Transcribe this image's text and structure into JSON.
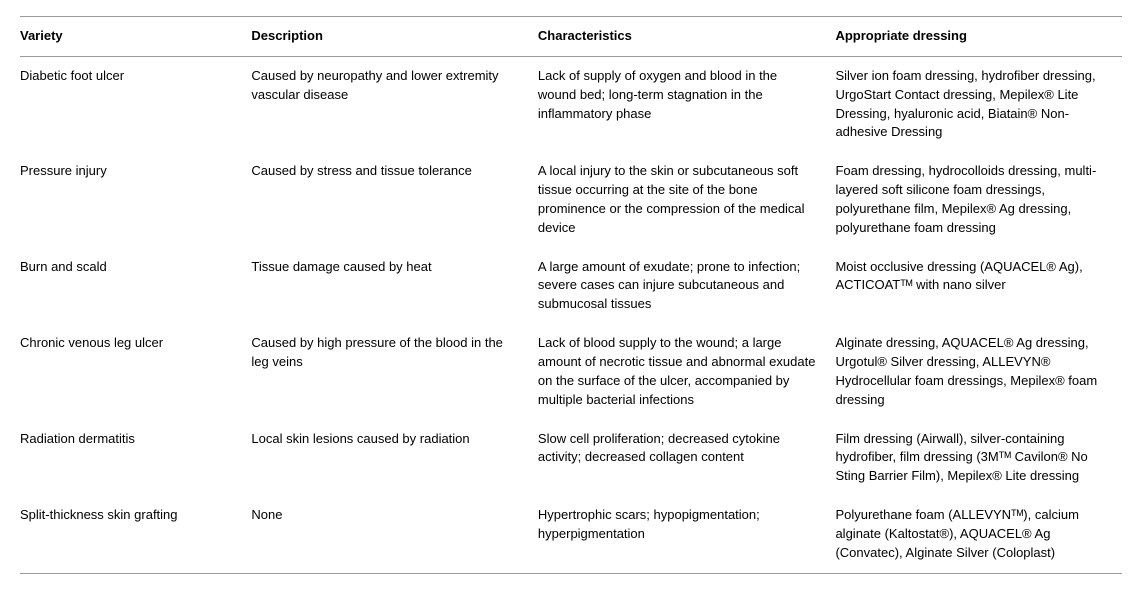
{
  "table": {
    "columns": [
      "Variety",
      "Description",
      "Characteristics",
      "Appropriate dressing"
    ],
    "header_fontsize": 13,
    "header_fontweight": "bold",
    "cell_fontsize": 13,
    "border_color": "#9a9a9a",
    "background_color": "#ffffff",
    "text_color": "#000000",
    "col_widths": [
      "21%",
      "26%",
      "27%",
      "26%"
    ],
    "rows": [
      {
        "variety": "Diabetic foot ulcer",
        "description": "Caused by neuropathy and lower extremity vascular disease",
        "characteristics": "Lack of supply of oxygen and blood in the wound bed; long-term stagnation in the inflammatory phase",
        "dressing": "Silver ion foam dressing, hydrofiber dressing, UrgoStart Contact dressing, Mepilex® Lite Dressing, hyaluronic acid, Biatain® Non-adhesive Dressing"
      },
      {
        "variety": "Pressure injury",
        "description": "Caused by stress and tissue tolerance",
        "characteristics": "A local injury to the skin or subcutaneous soft tissue occurring at the site of the bone prominence or the compression of the medical device",
        "dressing": "Foam dressing, hydrocolloids dressing, multi-layered soft silicone foam dressings, polyurethane film, Mepilex® Ag dressing, polyurethane foam dressing"
      },
      {
        "variety": "Burn and scald",
        "description": "Tissue damage caused by heat",
        "characteristics": "A large amount of exudate; prone to infection; severe cases can injure subcutaneous and submucosal tissues",
        "dressing": "Moist occlusive dressing (AQUACEL® Ag), ACTICOATᵀᴹ with nano silver"
      },
      {
        "variety": "Chronic venous leg ulcer",
        "description": "Caused by high pressure of the blood in the leg veins",
        "characteristics": "Lack of blood supply to the wound; a large amount of necrotic tissue and abnormal exudate on the surface of the ulcer, accompanied by multiple bacterial infections",
        "dressing": "Alginate dressing, AQUACEL® Ag dressing, Urgotul® Silver dressing, ALLEVYN® Hydrocellular foam dressings, Mepilex® foam dressing"
      },
      {
        "variety": "Radiation dermatitis",
        "description": "Local skin lesions caused by radiation",
        "characteristics": "Slow cell proliferation; decreased cytokine activity; decreased collagen content",
        "dressing": "Film dressing (Airwall), silver-containing hydrofiber, film dressing (3Mᵀᴹ Cavilon® No Sting Barrier Film), Mepilex® Lite dressing"
      },
      {
        "variety": "Split-thickness skin grafting",
        "description": "None",
        "characteristics": "Hypertrophic scars; hypopigmentation; hyperpigmentation",
        "dressing": "Polyurethane foam (ALLEVYNᵀᴹ), calcium alginate (Kaltostat®), AQUACEL® Ag (Convatec), Alginate Silver (Coloplast)"
      }
    ]
  }
}
